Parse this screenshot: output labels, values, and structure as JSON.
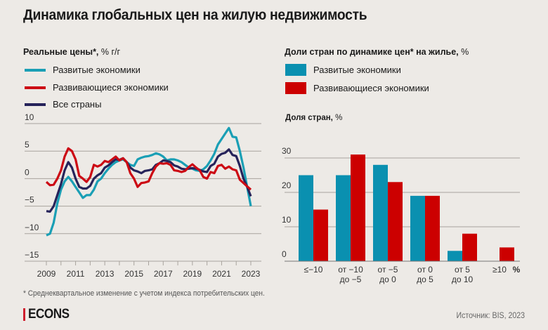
{
  "title": "Динамика глобальных цен на жилую недвижимость",
  "colors": {
    "developed": "#1a9fb5",
    "developing": "#cc0a14",
    "all": "#26235a",
    "bar_developed": "#0a90b0",
    "bar_developing": "#cc0000",
    "grid": "#a8a39d",
    "accent": "#cf1f2e"
  },
  "chart_data": [
    {
      "type": "line",
      "title_bold": "Реальные цены*,",
      "title_rest": " % г/г",
      "ylim": [
        -15,
        10
      ],
      "yticks": [
        "10",
        "5",
        "0",
        "−5",
        "−10",
        "−15"
      ],
      "ytick_values": [
        10,
        5,
        0,
        -5,
        -10,
        -15
      ],
      "xticks": [
        "2009",
        "2011",
        "2013",
        "2015",
        "2017",
        "2019",
        "2021",
        "2023"
      ],
      "xtick_values": [
        2009,
        2011,
        2013,
        2015,
        2017,
        2019,
        2021,
        2023
      ],
      "x_start": 2009.0,
      "x_step": 0.25,
      "grid": true,
      "legend": "top-left",
      "series": [
        {
          "name": "Развитые экономики",
          "key": "developed",
          "values": [
            -10.3,
            -10,
            -8,
            -4.5,
            -2,
            -0.5,
            0.3,
            -0.5,
            -1.5,
            -2.5,
            -3.5,
            -3,
            -3,
            -2,
            -0.5,
            0,
            1,
            1.8,
            2.5,
            3,
            3.3,
            3.5,
            3,
            2.5,
            2.3,
            3.5,
            3.8,
            4,
            4.1,
            4.3,
            4.6,
            4.4,
            4,
            3.3,
            3.5,
            3.5,
            3.3,
            3,
            2.5,
            2,
            1.8,
            1.5,
            1.4,
            1.7,
            2.3,
            3.3,
            4.5,
            6.2,
            7.2,
            8.2,
            9.2,
            7.6,
            7.5,
            5,
            2,
            -1.5,
            -5
          ]
        },
        {
          "name": "Развивающиеся экономики",
          "key": "developing",
          "values": [
            -0.6,
            -1.2,
            -1.1,
            0,
            1.5,
            4,
            5.5,
            5,
            3.5,
            0.5,
            0,
            -0.6,
            0.3,
            2.5,
            2.2,
            2.5,
            3.2,
            3,
            3.5,
            4,
            3.3,
            3.7,
            3,
            1,
            0,
            -1.5,
            -0.8,
            -0.7,
            -0.5,
            1,
            2.2,
            2.8,
            2.7,
            2.8,
            2.5,
            1.5,
            1.4,
            1.2,
            1.4,
            2.1,
            2.6,
            2,
            1.5,
            0.3,
            0,
            1.2,
            1,
            2.3,
            2.5,
            1.8,
            2.2,
            1.7,
            1.5,
            -0.2,
            -0.8,
            -1.4,
            -2
          ]
        },
        {
          "name": "Все страны",
          "key": "all",
          "values": [
            -5.9,
            -6,
            -5,
            -3,
            -1,
            1.5,
            3,
            2,
            0,
            -1.5,
            -1.8,
            -1.8,
            -1.3,
            0,
            0.6,
            1,
            2,
            2.4,
            3,
            3.5,
            3.4,
            3.7,
            3,
            2,
            1.5,
            1.3,
            1,
            1.4,
            1.5,
            1.7,
            2.5,
            2.8,
            3.3,
            3.2,
            3,
            2.4,
            2.2,
            1.8,
            1.7,
            1.8,
            1.9,
            1.8,
            1.6,
            1.3,
            1.2,
            2.3,
            2.7,
            4,
            4.5,
            4.7,
            5.3,
            4.3,
            4.1,
            2.3,
            0,
            -1.5,
            -3.2
          ]
        }
      ]
    },
    {
      "type": "bar",
      "title_bold": "Доли стран по динамике цен* на жилье,",
      "title_rest": " %",
      "ylabel_bold": "Доля стран,",
      "ylabel_rest": " %",
      "ylim": [
        0,
        30
      ],
      "yticks": [
        "30",
        "20",
        "10",
        "0"
      ],
      "ytick_values": [
        30,
        20,
        10,
        0
      ],
      "x_unit": "%",
      "categories": [
        {
          "line1": "≤−10",
          "line2": ""
        },
        {
          "line1": "от −10",
          "line2": "до −5"
        },
        {
          "line1": "от −5",
          "line2": "до 0"
        },
        {
          "line1": "от 0",
          "line2": "до 5"
        },
        {
          "line1": "от 5",
          "line2": "до 10"
        },
        {
          "line1": "≥10",
          "line2": ""
        }
      ],
      "legend": "top-left",
      "series": [
        {
          "name": "Развитые экономики",
          "key": "bar_developed",
          "values": [
            25,
            25,
            28,
            19,
            3,
            0
          ]
        },
        {
          "name": "Развивающиеся экономики",
          "key": "bar_developing",
          "values": [
            15,
            31,
            23,
            19,
            8,
            4
          ]
        }
      ]
    }
  ],
  "footnote": "* Среднеквартальное изменение с учетом индекса потребительских цен.",
  "logo": "ECONS",
  "source": "Источник: BIS, 2023"
}
